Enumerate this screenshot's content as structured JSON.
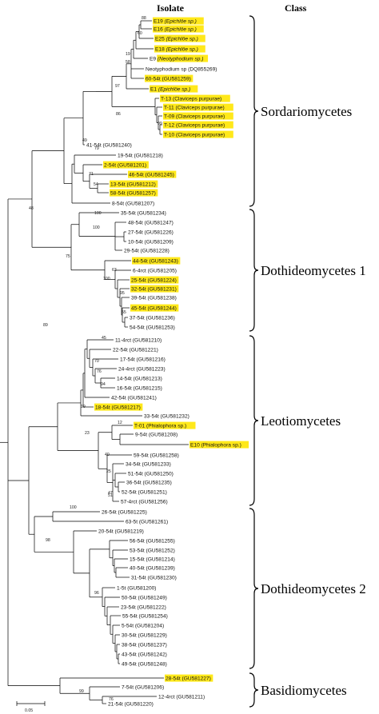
{
  "header": {
    "isolate": "Isolate",
    "class": "Class"
  },
  "scale_bar": {
    "label": "0.05"
  },
  "highlight_color": "#ffe81a",
  "classes": [
    {
      "id": "sord",
      "name": "Sordariomycetes"
    },
    {
      "id": "doth1",
      "name": "Dothideomycetes 1"
    },
    {
      "id": "leot",
      "name": "Leotiomycetes"
    },
    {
      "id": "doth2",
      "name": "Dothideomycetes 2"
    },
    {
      "id": "basi",
      "name": "Basidiomycetes"
    }
  ],
  "leaves": [
    {
      "id": "E19",
      "label": "E19",
      "note": "Epichlöe sp.",
      "italic": true,
      "hl": true
    },
    {
      "id": "E16",
      "label": "E16",
      "note": "Epichlöe sp.",
      "italic": true,
      "hl": true
    },
    {
      "id": "E25",
      "label": "E25",
      "note": "Epichlöe sp.",
      "italic": true,
      "hl": true
    },
    {
      "id": "E18",
      "label": "E18",
      "note": "Epichlöe sp.",
      "italic": true,
      "hl": true
    },
    {
      "id": "E9",
      "label": "E9",
      "note": "Neotyphodium sp.",
      "italic": true,
      "hl": true,
      "hl_note_only": true
    },
    {
      "id": "NeoDQ",
      "label": "Neotyphodium sp (DQ855269)",
      "hl": false
    },
    {
      "id": "s60",
      "label": "60-54t (GU581259)",
      "hl": true
    },
    {
      "id": "E1",
      "label": "E1",
      "note": "Epichlöe sp.",
      "italic": true,
      "hl": true
    },
    {
      "id": "T13",
      "label": "T-13 (Claviceps purpurae)",
      "hl": true
    },
    {
      "id": "T11",
      "label": "T-11 (Claviceps purpurae)",
      "hl": true
    },
    {
      "id": "T09",
      "label": "T-09 (Claviceps purpurae)",
      "hl": true
    },
    {
      "id": "T12",
      "label": "T-12 (Claviceps purpurae)",
      "hl": true
    },
    {
      "id": "T10",
      "label": "T-10 (Claviceps purpurae)",
      "hl": true
    },
    {
      "id": "s41",
      "label": "41-54t (GU581240)",
      "hl": false
    },
    {
      "id": "s19",
      "label": "19-54t (GU581218)",
      "hl": false
    },
    {
      "id": "s2",
      "label": "2-54t (GU581201)",
      "hl": true
    },
    {
      "id": "s46",
      "label": "46-54t (GU581245)",
      "hl": true
    },
    {
      "id": "s13",
      "label": "13-54t (GU581212)",
      "hl": true
    },
    {
      "id": "s58",
      "label": "58-54t (GU581257)",
      "hl": true
    },
    {
      "id": "s8",
      "label": "8-54t (GU581207)",
      "hl": false
    },
    {
      "id": "s35",
      "label": "35-54t (GU581234)",
      "hl": false
    },
    {
      "id": "s48",
      "label": "48-54t (GU581247)",
      "hl": false
    },
    {
      "id": "s27",
      "label": "27-54t (GU581226)",
      "hl": false
    },
    {
      "id": "s10",
      "label": "10-54t (GU581209)",
      "hl": false
    },
    {
      "id": "s29",
      "label": "29-54t (GU581228)",
      "hl": false
    },
    {
      "id": "s44",
      "label": "44-54t (GU581243)",
      "hl": true
    },
    {
      "id": "r6",
      "label": "6-4rct (GU581205)",
      "hl": false
    },
    {
      "id": "s25",
      "label": "25-54t (GU581224)",
      "hl": true
    },
    {
      "id": "s32",
      "label": "32-54t (GU581231)",
      "hl": true
    },
    {
      "id": "s39",
      "label": "39-54t (GU581238)",
      "hl": false
    },
    {
      "id": "s45",
      "label": "45-54t (GU581244)",
      "hl": true
    },
    {
      "id": "s37",
      "label": "37-54t (GU581236)",
      "hl": false
    },
    {
      "id": "s54",
      "label": "54-54t (GU581253)",
      "hl": false
    },
    {
      "id": "r11",
      "label": "11-4rct (GU581210)",
      "hl": false
    },
    {
      "id": "s22",
      "label": "22-54t (GU581221)",
      "hl": false
    },
    {
      "id": "s17",
      "label": "17-54t (GU581216)",
      "hl": false
    },
    {
      "id": "r24",
      "label": "24-4rct (GU581223)",
      "hl": false
    },
    {
      "id": "s14",
      "label": "14-54t (GU581213)",
      "hl": false
    },
    {
      "id": "s16",
      "label": "16-54t (GU581215)",
      "hl": false
    },
    {
      "id": "s42",
      "label": "42-54t (GU581241)",
      "hl": false
    },
    {
      "id": "s18",
      "label": "18-54t (GU581217)",
      "hl": true
    },
    {
      "id": "s33",
      "label": "33-54t (GU581232)",
      "hl": false
    },
    {
      "id": "T01",
      "label": "T-01 (Phialophora sp.)",
      "hl": true
    },
    {
      "id": "s9",
      "label": "9-54t (GU581208)",
      "hl": false
    },
    {
      "id": "E10",
      "label": "E10 (Phialophora sp.)",
      "hl": true
    },
    {
      "id": "s59",
      "label": "59-54t (GU581258)",
      "hl": false
    },
    {
      "id": "s34",
      "label": "34-54t (GU581233)",
      "hl": false
    },
    {
      "id": "s51",
      "label": "51-54t (GU581250)",
      "hl": false
    },
    {
      "id": "s36",
      "label": "36-54t (GU581235)",
      "hl": false
    },
    {
      "id": "s52",
      "label": "52-54t (GU581251)",
      "hl": false
    },
    {
      "id": "r57",
      "label": "57-4rct (GU581256)",
      "hl": false
    },
    {
      "id": "s26",
      "label": "26-54t (GU581225)",
      "hl": false
    },
    {
      "id": "t63",
      "label": "63-5t (GU581261)",
      "hl": false
    },
    {
      "id": "s20",
      "label": "20-54t (GU581219)",
      "hl": false
    },
    {
      "id": "s56",
      "label": "56-54t (GU581255)",
      "hl": false
    },
    {
      "id": "s53",
      "label": "53-54t (GU581252)",
      "hl": false
    },
    {
      "id": "s15",
      "label": "15-54t (GU581214)",
      "hl": false
    },
    {
      "id": "s40",
      "label": "40-54t (GU581239)",
      "hl": false
    },
    {
      "id": "s31",
      "label": "31-54t (GU581230)",
      "hl": false
    },
    {
      "id": "t1",
      "label": "1-5t (GU581200)",
      "hl": false
    },
    {
      "id": "s50",
      "label": "50-54t (GU581249)",
      "hl": false
    },
    {
      "id": "s23",
      "label": "23-54t (GU581222)",
      "hl": false
    },
    {
      "id": "s55",
      "label": "55-54t (GU581254)",
      "hl": false
    },
    {
      "id": "s5",
      "label": "5-54t (GU581204)",
      "hl": false
    },
    {
      "id": "s30",
      "label": "30-54t (GU581229)",
      "hl": false
    },
    {
      "id": "s38",
      "label": "38-54t (GU581237)",
      "hl": false
    },
    {
      "id": "s43",
      "label": "43-54t (GU581242)",
      "hl": false
    },
    {
      "id": "s49",
      "label": "49-54t (GU581248)",
      "hl": false
    },
    {
      "id": "s28",
      "label": "28-54t (GU581227)",
      "hl": true
    },
    {
      "id": "s7",
      "label": "7-54t (GU581206)",
      "hl": false
    },
    {
      "id": "r12",
      "label": "12-4rct (GU581211)",
      "hl": false
    },
    {
      "id": "s21",
      "label": "21-54t (GU581220)",
      "hl": false
    }
  ],
  "bootstrap_values": [
    "88",
    "60",
    "19",
    "58",
    "97",
    "86",
    "99",
    "49",
    "79",
    "71",
    "54",
    "100",
    "48",
    "100",
    "75",
    "63",
    "100",
    "95",
    "55",
    "89",
    "45",
    "70",
    "76",
    "94",
    "19",
    "12",
    "23",
    "40",
    "25",
    "47",
    "51",
    "100",
    "98",
    "96",
    "99",
    "76"
  ]
}
